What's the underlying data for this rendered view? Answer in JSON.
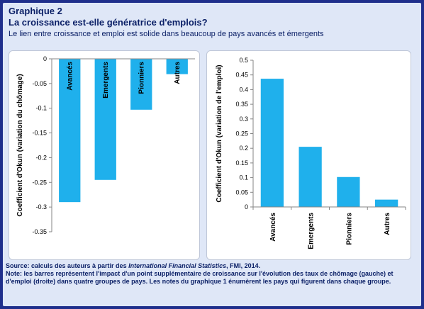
{
  "header": {
    "kicker": "Graphique 2",
    "title": "La croissance est-elle génératrice d'emplois?",
    "subtitle": "Le lien entre croissance et emploi est solide dans beaucoup de pays avancés et émergents"
  },
  "chart_data": [
    {
      "type": "bar",
      "categories": [
        "Avancés",
        "Emergents",
        "Pionniers",
        "Autres"
      ],
      "values": [
        -0.29,
        -0.245,
        -0.103,
        -0.031
      ],
      "title": "",
      "xlabel": "",
      "ylabel": "Coefficient d'Okun (variation du chômage)",
      "ylim": [
        -0.35,
        0
      ],
      "yticks": [
        "0",
        "-0.05",
        "-0.1",
        "-0.15",
        "-0.2",
        "-0.25",
        "-0.3",
        "-0.35"
      ],
      "grid": false,
      "bar_color": "#1fb0ec",
      "category_labels_inside_bars": true
    },
    {
      "type": "bar",
      "categories": [
        "Avancés",
        "Emergents",
        "Pionniers",
        "Autres"
      ],
      "values": [
        0.437,
        0.205,
        0.102,
        0.025
      ],
      "title": "",
      "xlabel": "",
      "ylabel": "Coefficient d'Okun (variation de l'emploi)",
      "ylim": [
        0,
        0.5
      ],
      "yticks": [
        "0",
        "0.05",
        "0.1",
        "0.15",
        "0.2",
        "0.25",
        "0.3",
        "0.35",
        "0.4",
        "0.45",
        "0.5"
      ],
      "grid": false,
      "bar_color": "#1fb0ec",
      "category_labels_inside_bars": false
    }
  ],
  "footer": {
    "source_prefix": "Source: calculs des auteurs à partir des ",
    "source_italic": "International Financial Statistics",
    "source_suffix": ", FMI, 2014.",
    "note": "Note: les barres représentent l'impact d'un point supplémentaire de croissance sur l'évolution des taux de chômage (gauche) et d'emploi (droite) dans quatre groupes de pays. Les notes du graphique 1 énumèrent les pays qui figurent dans chaque groupe."
  }
}
